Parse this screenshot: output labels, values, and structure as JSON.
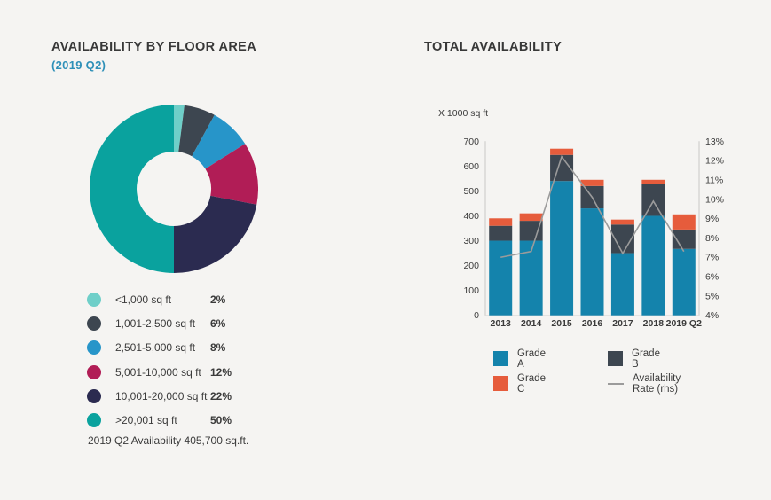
{
  "page": {
    "background": "#f5f4f2"
  },
  "left_panel": {
    "title": "AVAILABILITY BY FLOOR AREA",
    "subtitle": "(2019 Q2)",
    "footer_note": "2019 Q2 Availability 405,700 sq.ft."
  },
  "right_panel": {
    "title": "TOTAL AVAILABILITY",
    "y_axis_label": "X 1000 sq ft"
  },
  "colors": {
    "background": "#f5f4f2",
    "title_text": "#383838",
    "subtitle_text": "#2e90b8",
    "tick_text": "#3b3b3b",
    "axis_line": "#c9c7c5",
    "rate_line": "#9b9b9b"
  },
  "chart_data": [
    {
      "type": "pie",
      "variant": "donut",
      "title": "AVAILABILITY BY FLOOR AREA",
      "subtitle": "(2019 Q2)",
      "start_angle_deg": -90,
      "direction": "clockwise",
      "legend_position": "bottom-left",
      "note": "2019 Q2 Availability 405,700 sq.ft.",
      "segments": [
        {
          "label": "<1,000 sq ft",
          "pct": 2,
          "color": "#6fcfc9"
        },
        {
          "label": "1,001-2,500 sq ft",
          "pct": 6,
          "color": "#3d4650"
        },
        {
          "label": "2,501-5,000 sq ft",
          "pct": 8,
          "color": "#2795c9"
        },
        {
          "label": "5,001-10,000 sq ft",
          "pct": 12,
          "color": "#b11d56"
        },
        {
          "label": "10,001-20,000 sq ft",
          "pct": 22,
          "color": "#2b2b50"
        },
        {
          "label": ">20,001 sq ft",
          "pct": 50,
          "color": "#0aa29e"
        }
      ]
    },
    {
      "type": "bar",
      "variant": "stacked-with-line",
      "title": "TOTAL AVAILABILITY",
      "ylabel": "X 1000 sq ft",
      "categories": [
        "2013",
        "2014",
        "2015",
        "2016",
        "2017",
        "2018",
        "2019 Q2"
      ],
      "series": [
        {
          "name": "Grade A",
          "color": "#1483ac",
          "values": [
            300,
            300,
            540,
            430,
            250,
            400,
            267
          ]
        },
        {
          "name": "Grade B",
          "color": "#3d4650",
          "values": [
            60,
            80,
            105,
            90,
            115,
            130,
            78
          ]
        },
        {
          "name": "Grade C",
          "color": "#e65c3c",
          "values": [
            30,
            30,
            25,
            25,
            20,
            15,
            61
          ]
        }
      ],
      "line_series": {
        "name": "Availability Rate (rhs)",
        "color": "#9b9b9b",
        "values": [
          7.0,
          7.3,
          12.2,
          10.1,
          7.2,
          9.9,
          7.3
        ]
      },
      "left_axis": {
        "min": 0,
        "max": 700,
        "step": 100
      },
      "right_axis": {
        "min": 4,
        "max": 13,
        "step": 1,
        "suffix": "%"
      },
      "grid": false,
      "legend_position": "bottom"
    }
  ]
}
